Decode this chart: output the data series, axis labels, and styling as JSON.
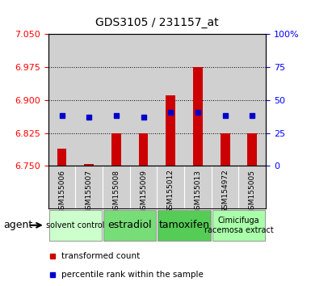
{
  "title": "GDS3105 / 231157_at",
  "samples": [
    "GSM155006",
    "GSM155007",
    "GSM155008",
    "GSM155009",
    "GSM155012",
    "GSM155013",
    "GSM154972",
    "GSM155005"
  ],
  "bar_values": [
    6.79,
    6.755,
    6.825,
    6.825,
    6.91,
    6.975,
    6.825,
    6.825
  ],
  "dot_values_left": [
    6.865,
    6.862,
    6.865,
    6.862,
    6.872,
    6.872,
    6.865,
    6.865
  ],
  "ymin": 6.75,
  "ymax": 7.05,
  "yticks": [
    6.75,
    6.825,
    6.9,
    6.975,
    7.05
  ],
  "y2min": 0,
  "y2max": 100,
  "y2ticks": [
    0,
    25,
    50,
    75,
    100
  ],
  "bar_color": "#cc0000",
  "dot_color": "#0000cc",
  "groups": [
    {
      "label": "solvent control",
      "start": 0,
      "end": 2,
      "color": "#ccffcc",
      "fontsize": 7
    },
    {
      "label": "estradiol",
      "start": 2,
      "end": 4,
      "color": "#77dd77",
      "fontsize": 9
    },
    {
      "label": "tamoxifen",
      "start": 4,
      "end": 6,
      "color": "#55cc55",
      "fontsize": 9
    },
    {
      "label": "Cimicifuga\nracemosa extract",
      "start": 6,
      "end": 8,
      "color": "#aaffaa",
      "fontsize": 7
    }
  ],
  "agent_label": "agent",
  "legend_bar": "transformed count",
  "legend_dot": "percentile rank within the sample",
  "bar_bottom": 6.75,
  "sample_bg": "#d0d0d0",
  "plot_bg": "#ffffff"
}
